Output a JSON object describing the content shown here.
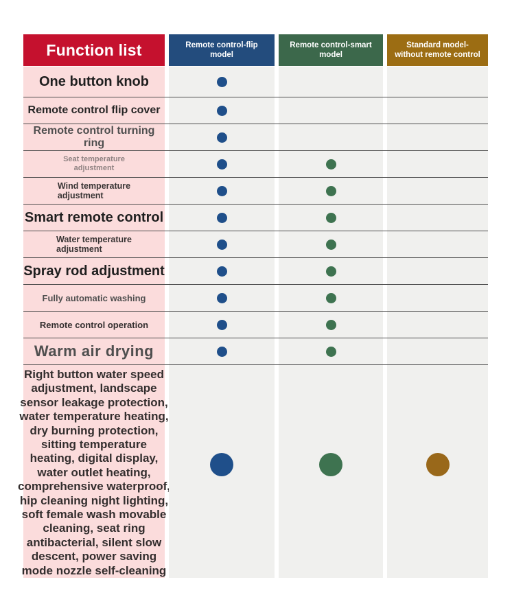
{
  "table": {
    "function_header": {
      "label": "Function list",
      "bg": "#C5112E",
      "text_color": "#ffffff"
    },
    "columns": [
      {
        "id": "flip",
        "label": "Remote control-flip model",
        "header_bg": "#234C7D",
        "dot_color": "#1F4F8A"
      },
      {
        "id": "smart",
        "label": "Remote control-smart model",
        "header_bg": "#3C684B",
        "dot_color": "#3E7350"
      },
      {
        "id": "standard",
        "label": "Standard model-without remote control",
        "header_bg": "#9C6D13",
        "dot_color": "#99681A"
      }
    ],
    "rows": [
      {
        "label": "One button knob",
        "cls": "xl",
        "dots": [
          "flip"
        ]
      },
      {
        "label": "Remote control flip cover",
        "cls": "lg",
        "dots": [
          "flip"
        ]
      },
      {
        "label": "Remote control turning ring",
        "cls": "lg soft",
        "dots": [
          "flip"
        ]
      },
      {
        "label": "Seat temperature\nadjustment",
        "cls": "xs muted",
        "dots": [
          "flip",
          "smart"
        ]
      },
      {
        "label": "Wind temperature\nadjustment",
        "cls": "sm leftblock",
        "dots": [
          "flip",
          "smart"
        ]
      },
      {
        "label": "Smart remote control",
        "cls": "xl",
        "dots": [
          "flip",
          "smart"
        ]
      },
      {
        "label": "Water temperature\nadjustment",
        "cls": "sm leftblock",
        "dots": [
          "flip",
          "smart"
        ]
      },
      {
        "label": "Spray rod adjustment",
        "cls": "xl",
        "dots": [
          "flip",
          "smart"
        ]
      },
      {
        "label": "Fully automatic washing",
        "cls": "md soft",
        "dots": [
          "flip",
          "smart"
        ]
      },
      {
        "label": "Remote control operation",
        "cls": "md",
        "dots": [
          "flip",
          "smart"
        ]
      },
      {
        "label": "Warm air drying",
        "cls": "xxl soft",
        "dots": [
          "flip",
          "smart"
        ]
      },
      {
        "label": "Right button water speed\nadjustment, landscape\nsensor leakage protection,\nwater temperature heating,\ndry burning protection,\nsitting temperature\nheating, digital display,\nwater outlet heating,\ncomprehensive waterproof,\nhip cleaning night lighting,\nsoft female wash movable\ncleaning, seat ring\nantibacterial, silent slow\ndescent, power saving\nmode nozzle self-cleaning",
        "cls": "big",
        "big": true,
        "dots": [
          "flip",
          "smart",
          "standard"
        ]
      }
    ],
    "row_bg": "#F0F0EE",
    "fn_col_bg": "#FBDCDC",
    "separator_color": "#4D4D4D"
  },
  "chart_data": {
    "type": "table",
    "title": "Function list",
    "columns": [
      "Function list",
      "Remote control-flip model",
      "Remote control-smart model",
      "Standard model-without remote control"
    ],
    "rows": [
      [
        "One button knob",
        true,
        false,
        false
      ],
      [
        "Remote control flip cover",
        true,
        false,
        false
      ],
      [
        "Remote control turning ring",
        true,
        false,
        false
      ],
      [
        "Seat temperature adjustment",
        true,
        true,
        false
      ],
      [
        "Wind temperature adjustment",
        true,
        true,
        false
      ],
      [
        "Smart remote control",
        true,
        true,
        false
      ],
      [
        "Water temperature adjustment",
        true,
        true,
        false
      ],
      [
        "Spray rod adjustment",
        true,
        true,
        false
      ],
      [
        "Fully automatic washing",
        true,
        true,
        false
      ],
      [
        "Remote control operation",
        true,
        true,
        false
      ],
      [
        "Warm air drying",
        true,
        true,
        false
      ],
      [
        "Right button water speed adjustment, landscape sensor leakage protection, water temperature heating, dry burning protection, sitting temperature heating, digital display, water outlet heating, comprehensive waterproof, hip cleaning night lighting, soft female wash movable cleaning, seat ring antibacterial, silent slow descent, power saving mode nozzle self-cleaning",
        true,
        true,
        true
      ]
    ],
    "legend": "filled dot = feature available for that model",
    "dot_colors": {
      "flip": "#1F4F8A",
      "smart": "#3E7350",
      "standard": "#99681A"
    }
  }
}
